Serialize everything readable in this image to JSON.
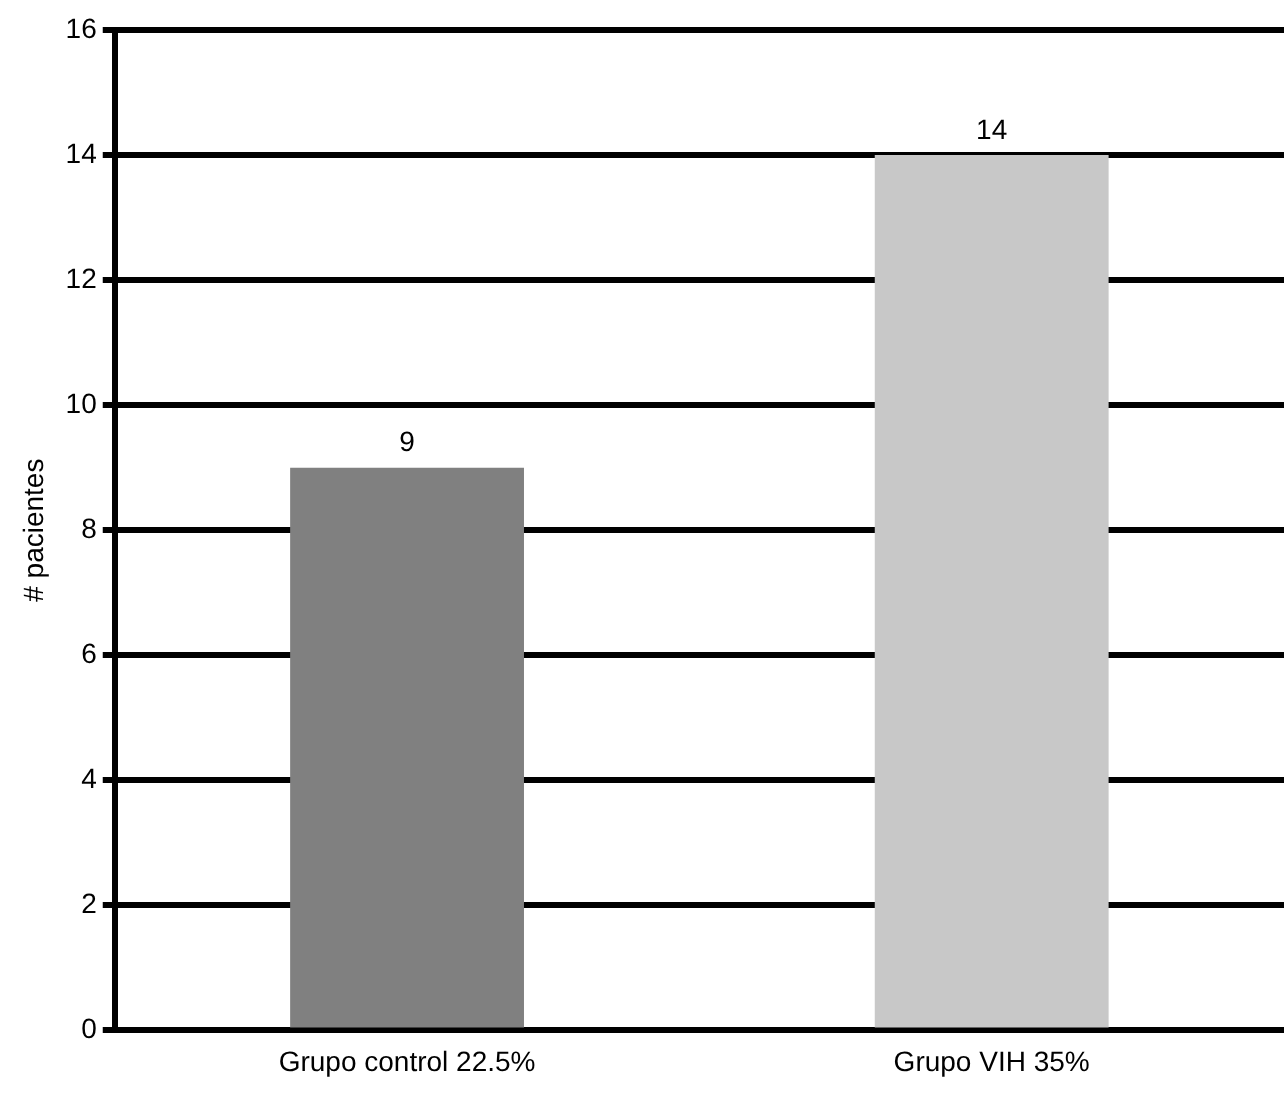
{
  "chart_data": {
    "type": "bar",
    "ylabel": "# pacientes",
    "categories": [
      "Grupo control 22.5%",
      "Grupo VIH 35%"
    ],
    "values": [
      9,
      14
    ],
    "colors": [
      "#808080",
      "#c8c8c8"
    ],
    "ylim": [
      0,
      16
    ],
    "yticks": [
      0,
      2,
      4,
      6,
      8,
      10,
      12,
      14,
      16
    ],
    "grid": "y",
    "data_labels": true,
    "legend": false
  }
}
